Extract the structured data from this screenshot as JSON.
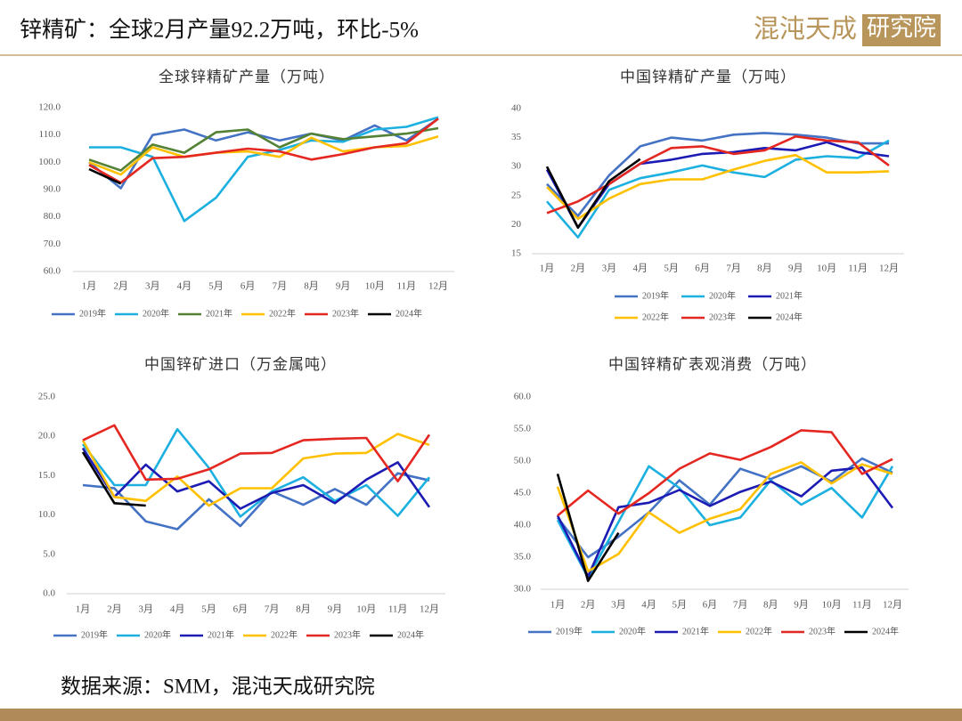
{
  "header": {
    "title": "锌精矿：全球2月产量92.2万吨，环比-5%",
    "logo_main": "混沌天成",
    "logo_box": "研究院"
  },
  "footer": {
    "source": "数据来源：SMM，混沌天成研究院"
  },
  "chart_data": [
    {
      "type": "line",
      "title": "全球锌精矿产量（万吨）",
      "grid": false,
      "categories": [
        "1月",
        "2月",
        "3月",
        "4月",
        "5月",
        "6月",
        "7月",
        "8月",
        "9月",
        "10月",
        "11月",
        "12月"
      ],
      "ylim": [
        60,
        120
      ],
      "yticks": [
        {
          "value": 60,
          "label": "60.0"
        },
        {
          "value": 70,
          "label": "70.0"
        },
        {
          "value": 80,
          "label": "80.0"
        },
        {
          "value": 90,
          "label": "90.0"
        },
        {
          "value": 100,
          "label": "100.0"
        },
        {
          "value": 110,
          "label": "110.0"
        },
        {
          "value": 120,
          "label": "120.0"
        }
      ],
      "series": [
        {
          "name": "2019年",
          "color": "#4472c4",
          "values": [
            100,
            90.5,
            110,
            112,
            108,
            111,
            108,
            110.5,
            108,
            113.5,
            108,
            116
          ]
        },
        {
          "name": "2020年",
          "color": "#1cb0e0",
          "values": [
            105.5,
            105.5,
            102,
            78.5,
            87,
            102,
            104.5,
            108,
            107.5,
            112,
            113,
            116.5
          ]
        },
        {
          "name": "2021年",
          "color": "#548235",
          "values": [
            101,
            97,
            106.5,
            103.5,
            111,
            112,
            105.5,
            110.5,
            108.5,
            109.5,
            110.5,
            112.5
          ]
        },
        {
          "name": "2022年",
          "color": "#ffc000",
          "values": [
            100,
            95.5,
            105.5,
            102,
            103.5,
            104,
            102,
            109,
            104,
            105.5,
            106,
            109.5
          ]
        },
        {
          "name": "2023年",
          "color": "#e52722",
          "values": [
            99,
            92.5,
            101.5,
            102,
            103.5,
            105,
            104,
            101,
            103,
            105.5,
            107,
            116
          ]
        },
        {
          "name": "2024年",
          "color": "#000000",
          "values": [
            97.5,
            92.2,
            null,
            null,
            null,
            null,
            null,
            null,
            null,
            null,
            null,
            null
          ]
        }
      ]
    },
    {
      "type": "line",
      "title": "中国锌精矿产量（万吨）",
      "grid": false,
      "categories": [
        "1月",
        "2月",
        "3月",
        "4月",
        "5月",
        "6月",
        "7月",
        "8月",
        "9月",
        "10月",
        "11月",
        "12月"
      ],
      "ylim": [
        15,
        40
      ],
      "yticks": [
        15,
        20,
        25,
        30,
        35,
        40
      ],
      "series": [
        {
          "name": "2019年",
          "color": "#4472c4",
          "values": [
            27,
            21.5,
            28.5,
            33.5,
            35,
            34.5,
            35.5,
            35.8,
            35.5,
            35,
            34,
            34
          ]
        },
        {
          "name": "2020年",
          "color": "#1cb0e0",
          "values": [
            24,
            17.8,
            26,
            28,
            29,
            30.2,
            29,
            28.2,
            31.2,
            31.8,
            31.5,
            34.5
          ]
        },
        {
          "name": "2021年",
          "color": "#1c1cb4",
          "values": [
            29.5,
            19.5,
            27,
            30.5,
            31.2,
            32.2,
            32.5,
            33.2,
            32.8,
            34.2,
            32.5,
            31.8
          ]
        },
        {
          "name": "2022年",
          "color": "#ffc000",
          "values": [
            26.5,
            21,
            24.5,
            27,
            27.8,
            27.8,
            29.5,
            31,
            32,
            29,
            29,
            29.2
          ]
        },
        {
          "name": "2023年",
          "color": "#e52722",
          "values": [
            22,
            24,
            27,
            30.5,
            33.2,
            33.5,
            32.2,
            32.8,
            35.2,
            34.5,
            34.2,
            30.2
          ]
        },
        {
          "name": "2024年",
          "color": "#000000",
          "values": [
            30,
            19.5,
            27.5,
            31.3,
            null,
            null,
            null,
            null,
            null,
            null,
            null,
            null
          ]
        }
      ]
    },
    {
      "type": "line",
      "title": "中国锌矿进口（万金属吨）",
      "grid": false,
      "categories": [
        "1月",
        "2月",
        "3月",
        "4月",
        "5月",
        "6月",
        "7月",
        "8月",
        "9月",
        "10月",
        "11月",
        "12月"
      ],
      "ylim": [
        0,
        25
      ],
      "yticks": [
        {
          "value": 0,
          "label": "0.0"
        },
        {
          "value": 5,
          "label": "5.0"
        },
        {
          "value": 10,
          "label": "10.0"
        },
        {
          "value": 15,
          "label": "15.0"
        },
        {
          "value": 20,
          "label": "20.0"
        },
        {
          "value": 25,
          "label": "25.0"
        }
      ],
      "series": [
        {
          "name": "2019年",
          "color": "#4472c4",
          "values": [
            13.8,
            13.4,
            9.2,
            8.2,
            12,
            8.6,
            13,
            11.3,
            13.3,
            11.3,
            15.3,
            14.4
          ]
        },
        {
          "name": "2020年",
          "color": "#1cb0e0",
          "values": [
            19,
            13.8,
            13.8,
            20.9,
            16,
            9.8,
            13,
            14.8,
            11.8,
            13.8,
            9.9,
            14.8
          ]
        },
        {
          "name": "2021年",
          "color": "#1c1cb4",
          "values": [
            18.5,
            12.3,
            16.4,
            13,
            14.3,
            10.8,
            12.8,
            13.8,
            11.5,
            14.5,
            16.7,
            11
          ]
        },
        {
          "name": "2022年",
          "color": "#ffc000",
          "values": [
            19.5,
            12.3,
            11.8,
            14.9,
            11.2,
            13.4,
            13.4,
            17.2,
            17.8,
            17.9,
            20.3,
            18.9
          ]
        },
        {
          "name": "2023年",
          "color": "#e52722",
          "values": [
            19.5,
            21.4,
            14.5,
            14.6,
            15.8,
            17.8,
            17.9,
            19.5,
            19.7,
            19.8,
            14.3,
            20.2
          ]
        },
        {
          "name": "2024年",
          "color": "#000000",
          "values": [
            18,
            11.5,
            11.2,
            null,
            null,
            null,
            null,
            null,
            null,
            null,
            null,
            null
          ]
        }
      ]
    },
    {
      "type": "line",
      "title": "中国锌精矿表观消费（万吨）",
      "grid": false,
      "categories": [
        "1月",
        "2月",
        "3月",
        "4月",
        "5月",
        "6月",
        "7月",
        "8月",
        "9月",
        "10月",
        "11月",
        "12月"
      ],
      "ylim": [
        30,
        60
      ],
      "yticks": [
        {
          "value": 30,
          "label": "30.0"
        },
        {
          "value": 35,
          "label": "35.0"
        },
        {
          "value": 40,
          "label": "40.0"
        },
        {
          "value": 45,
          "label": "45.0"
        },
        {
          "value": 50,
          "label": "50.0"
        },
        {
          "value": 55,
          "label": "55.0"
        },
        {
          "value": 60,
          "label": "60.0"
        }
      ],
      "series": [
        {
          "name": "2019年",
          "color": "#4472c4",
          "values": [
            41.2,
            35,
            38.2,
            42,
            47,
            43.2,
            48.8,
            47.2,
            49.2,
            46.8,
            50.4,
            48.2
          ]
        },
        {
          "name": "2020年",
          "color": "#1cb0e0",
          "values": [
            40.8,
            31.8,
            40.5,
            49.2,
            45.8,
            40,
            41.2,
            47,
            43.2,
            45.8,
            41.2,
            49.2
          ]
        },
        {
          "name": "2021年",
          "color": "#1c1cb4",
          "values": [
            41.5,
            32,
            42.8,
            43.5,
            45.5,
            43,
            45.2,
            46.8,
            44.5,
            48.5,
            49,
            42.7
          ]
        },
        {
          "name": "2022年",
          "color": "#ffc000",
          "values": [
            46,
            32.8,
            35.5,
            42,
            38.8,
            41,
            42.5,
            48,
            49.8,
            46.5,
            49.5,
            48
          ]
        },
        {
          "name": "2023年",
          "color": "#e52722",
          "values": [
            41.5,
            45.4,
            41.8,
            45,
            48.8,
            51.2,
            50.2,
            52.2,
            54.8,
            54.5,
            48,
            50.3
          ]
        },
        {
          "name": "2024年",
          "color": "#000000",
          "values": [
            48,
            31.3,
            38.8,
            null,
            null,
            null,
            null,
            null,
            null,
            null,
            null,
            null
          ]
        }
      ]
    }
  ]
}
